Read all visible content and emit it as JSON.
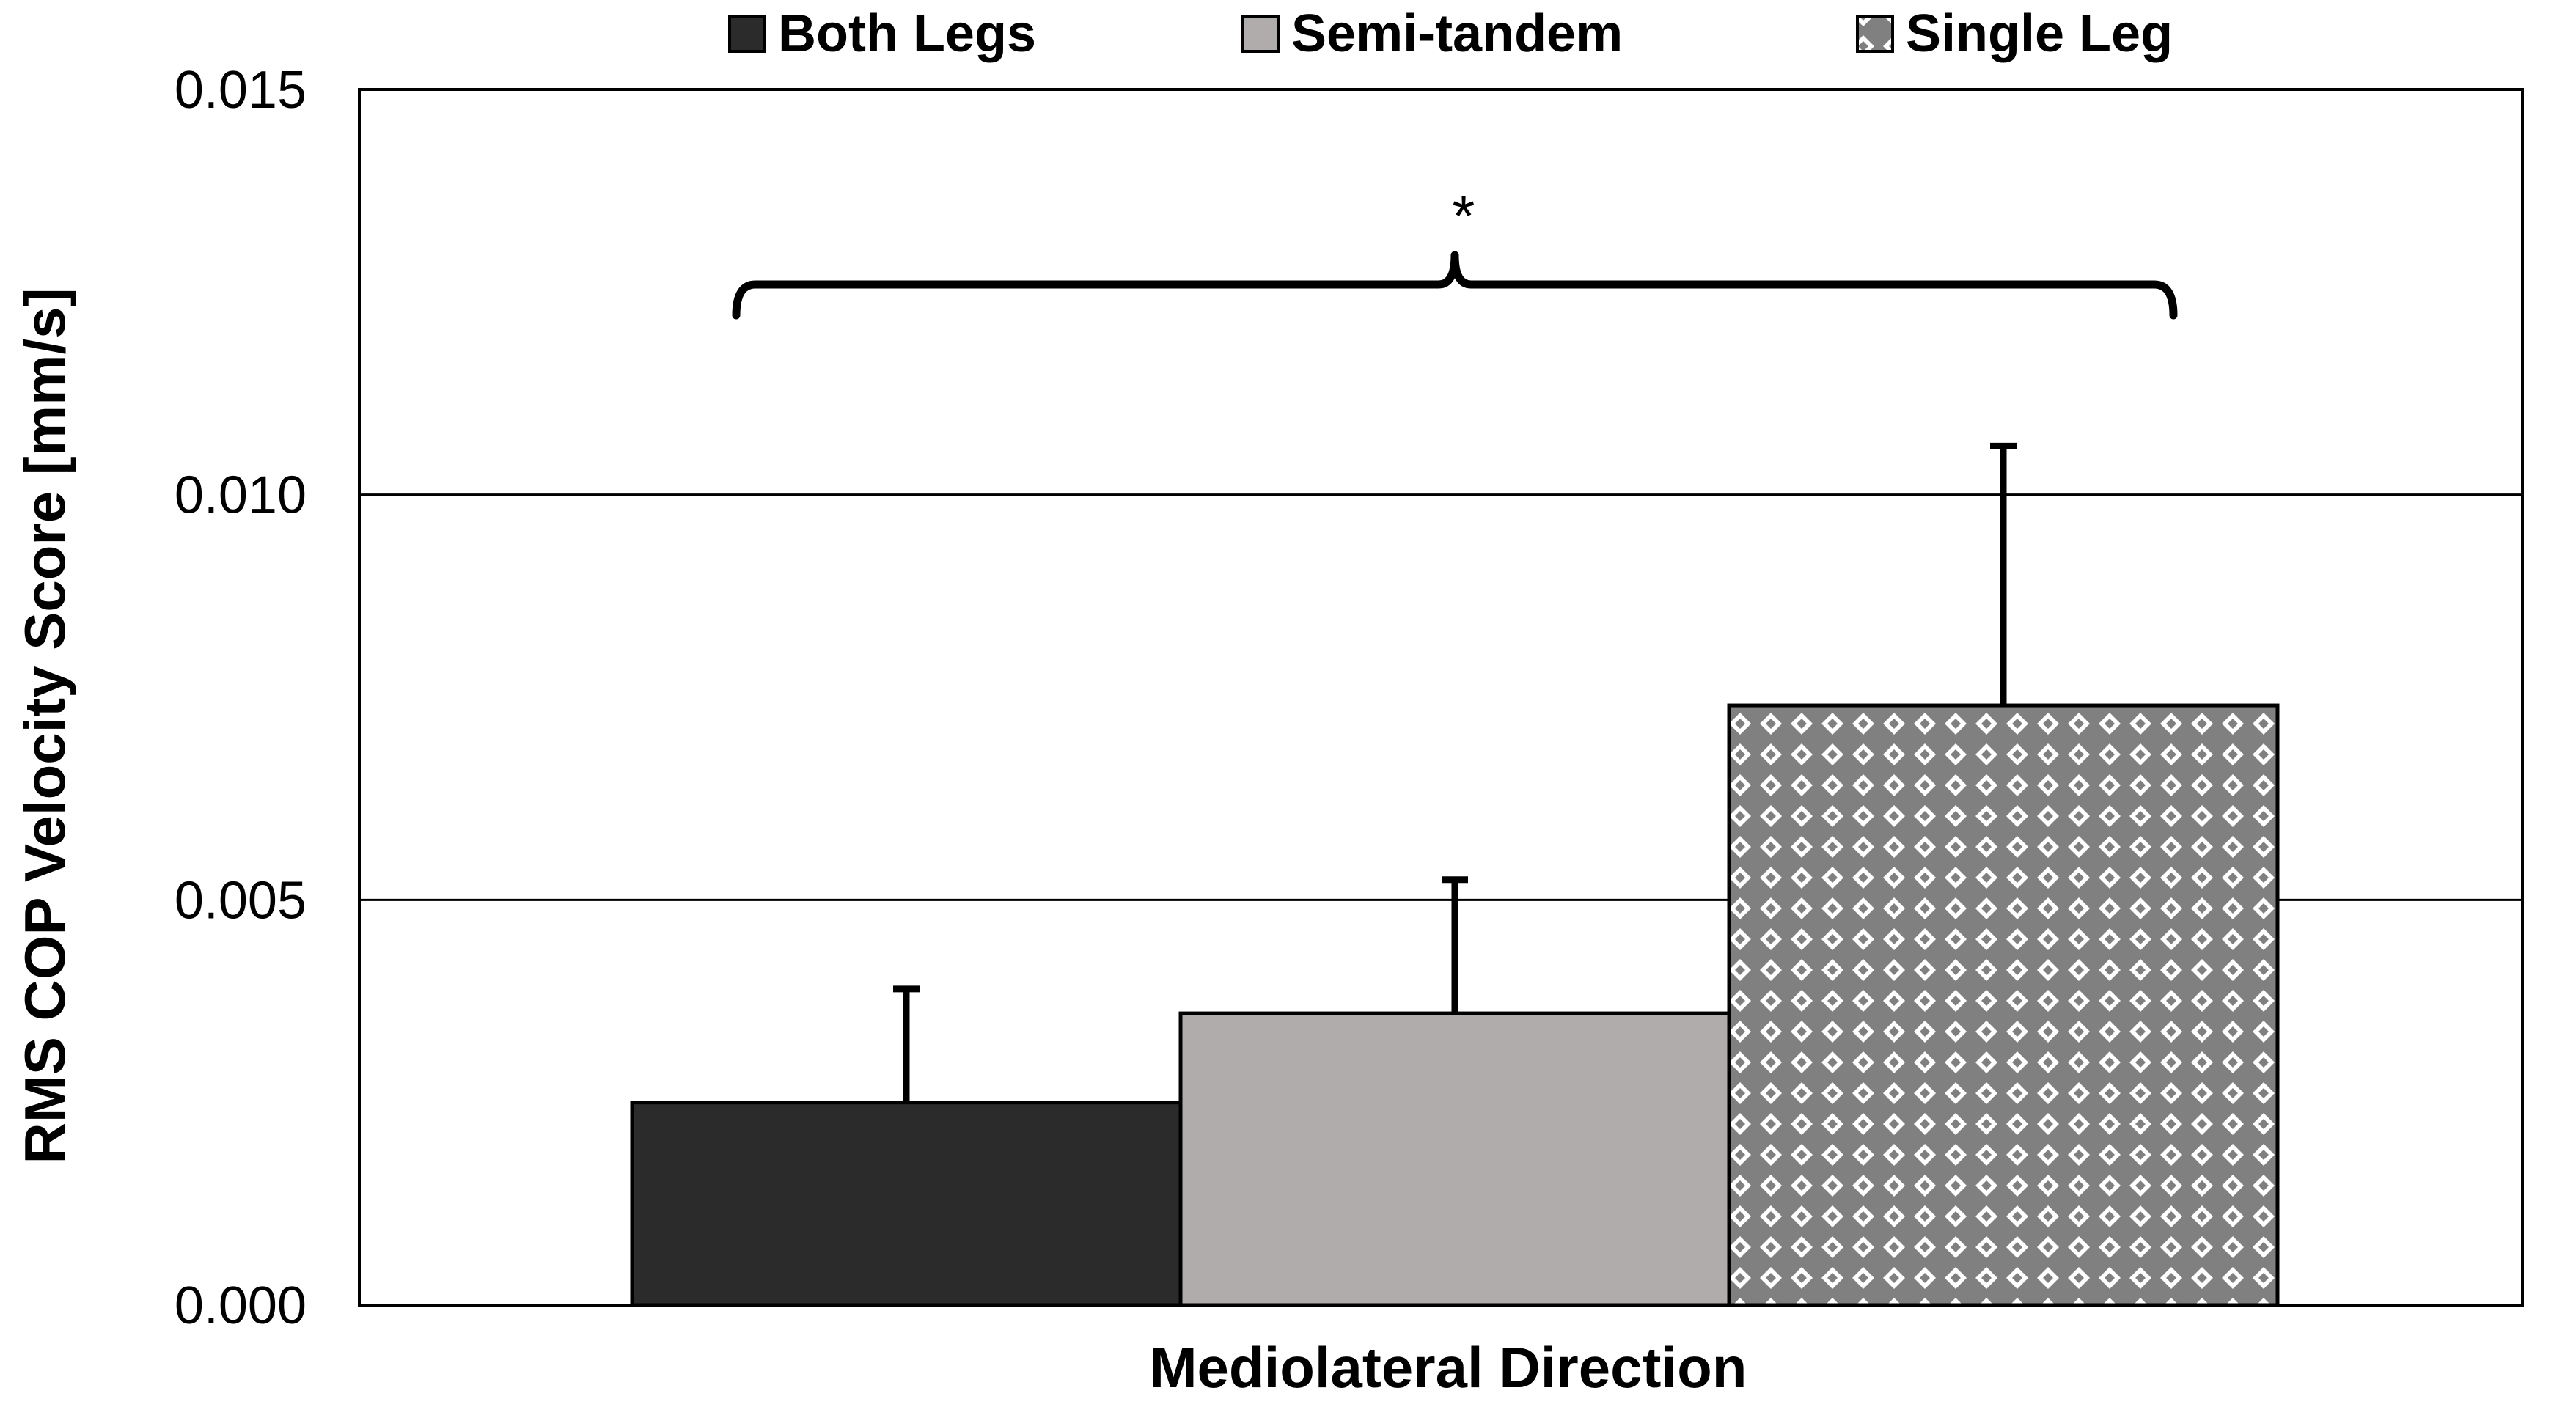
{
  "chart_data": {
    "type": "bar",
    "title": "",
    "xlabel": "Mediolateral Direction",
    "ylabel": "RMS COP Velocity Score [mm/s]",
    "ylim": [
      0,
      0.015
    ],
    "yticks": [
      0.0,
      0.005,
      0.01,
      0.015
    ],
    "ytick_labels": [
      "0.000",
      "0.005",
      "0.010",
      "0.015"
    ],
    "grid": true,
    "legend_position": "top",
    "categories": [
      "Mediolateral Direction"
    ],
    "series": [
      {
        "name": "Both Legs",
        "values": [
          0.0025
        ],
        "error": [
          0.0014
        ],
        "color": "#2b2b2b",
        "pattern": "solid"
      },
      {
        "name": "Semi-tandem",
        "values": [
          0.0036
        ],
        "error": [
          0.00165
        ],
        "color": "#afacab",
        "pattern": "solid"
      },
      {
        "name": "Single Leg",
        "values": [
          0.0074
        ],
        "error": [
          0.0032
        ],
        "color": "#808080",
        "pattern": "diamond-grid"
      }
    ],
    "annotations": [
      {
        "type": "bracket",
        "from_series": "Both Legs",
        "to_series": "Single Leg",
        "label": "*"
      }
    ]
  }
}
